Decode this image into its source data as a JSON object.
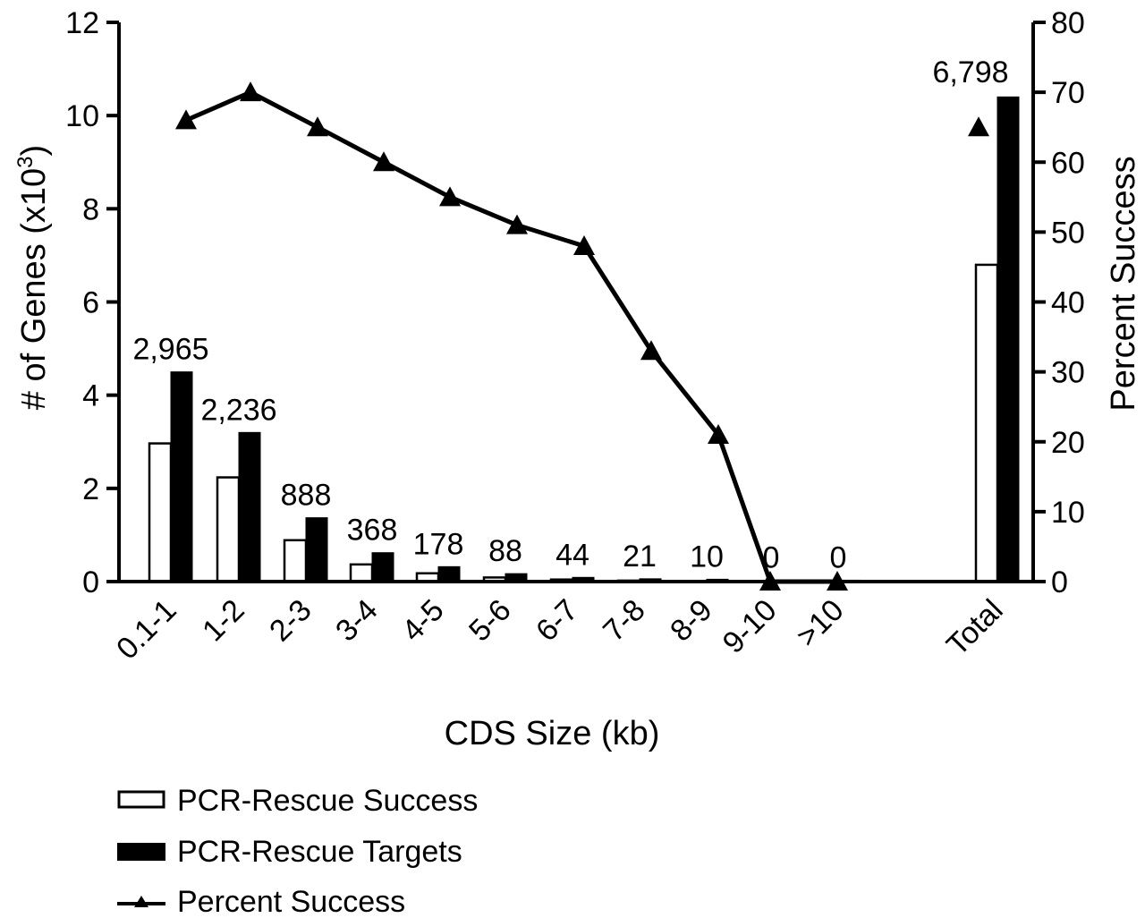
{
  "chart_data": {
    "type": "bar",
    "categories": [
      "0.1-1",
      "1-2",
      "2-3",
      "3-4",
      "4-5",
      "5-6",
      "6-7",
      "7-8",
      "8-9",
      "9-10",
      ">10",
      "Total"
    ],
    "series": [
      {
        "name": "PCR-Rescue Success",
        "type": "bar",
        "axis": "left",
        "fill": "#ffffff",
        "values": [
          2.965,
          2.236,
          0.888,
          0.368,
          0.178,
          0.088,
          0.044,
          0.021,
          0.01,
          0,
          0,
          6.798
        ]
      },
      {
        "name": "PCR-Rescue Targets",
        "type": "bar",
        "axis": "left",
        "fill": "#000000",
        "values": [
          4.5,
          3.2,
          1.37,
          0.62,
          0.32,
          0.17,
          0.09,
          0.06,
          0.05,
          0.03,
          0.03,
          10.4
        ]
      },
      {
        "name": "Percent Success",
        "type": "line",
        "axis": "right",
        "marker": "triangle",
        "values": [
          66,
          70,
          65,
          60,
          55,
          51,
          48,
          33,
          21,
          0,
          0,
          65
        ]
      }
    ],
    "data_labels": [
      "2,965",
      "2,236",
      "888",
      "368",
      "178",
      "88",
      "44",
      "21",
      "10",
      "0",
      "0",
      "6,798"
    ],
    "xlabel": "CDS Size (kb)",
    "ylabel": "# of Genes (x10",
    "ylabel_superscript": "3",
    "ylabel_suffix": ")",
    "y2label": "Percent Success",
    "ylim": [
      0,
      12
    ],
    "yticks": [
      "0",
      "2",
      "4",
      "6",
      "8",
      "10",
      "12"
    ],
    "y2lim": [
      0,
      80
    ],
    "y2ticks": [
      "0",
      "10",
      "20",
      "30",
      "40",
      "50",
      "60",
      "70",
      "80"
    ],
    "grid": false,
    "legend_position": "bottom-left",
    "legend": [
      "PCR-Rescue Success",
      "PCR-Rescue Targets",
      "Percent Success"
    ]
  }
}
